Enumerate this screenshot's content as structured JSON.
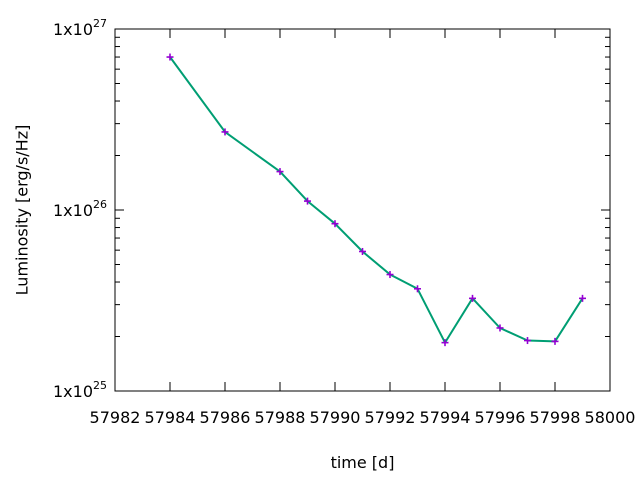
{
  "chart_data": {
    "type": "line",
    "title": "",
    "xlabel": "time [d]",
    "ylabel": "Luminosity [erg/s/Hz]",
    "xlim": [
      57982,
      58000
    ],
    "ylim": [
      1e+25,
      1e+27
    ],
    "yscale": "log",
    "grid": false,
    "x_ticks": [
      57982,
      57984,
      57986,
      57988,
      57990,
      57992,
      57994,
      57996,
      57998,
      58000
    ],
    "y_ticks": [
      {
        "value": 1e+25,
        "mantissa": "1x10",
        "exponent": "25"
      },
      {
        "value": 1e+26,
        "mantissa": "1x10",
        "exponent": "26"
      },
      {
        "value": 1e+27,
        "mantissa": "1x10",
        "exponent": "27"
      }
    ],
    "series": [
      {
        "line_color": "#009e73",
        "marker_color": "#9400d3",
        "x": [
          57984,
          57986,
          57988,
          57989,
          57990,
          57991,
          57992,
          57993,
          57994,
          57995,
          57996,
          57997,
          57998,
          57999
        ],
        "y": [
          7e+26,
          2.7e+26,
          1.63e+26,
          1.12e+26,
          8.4e+25,
          5.9e+25,
          4.4e+25,
          3.67e+25,
          1.85e+25,
          3.25e+25,
          2.23e+25,
          1.9e+25,
          1.88e+25,
          3.25e+25
        ]
      }
    ]
  }
}
